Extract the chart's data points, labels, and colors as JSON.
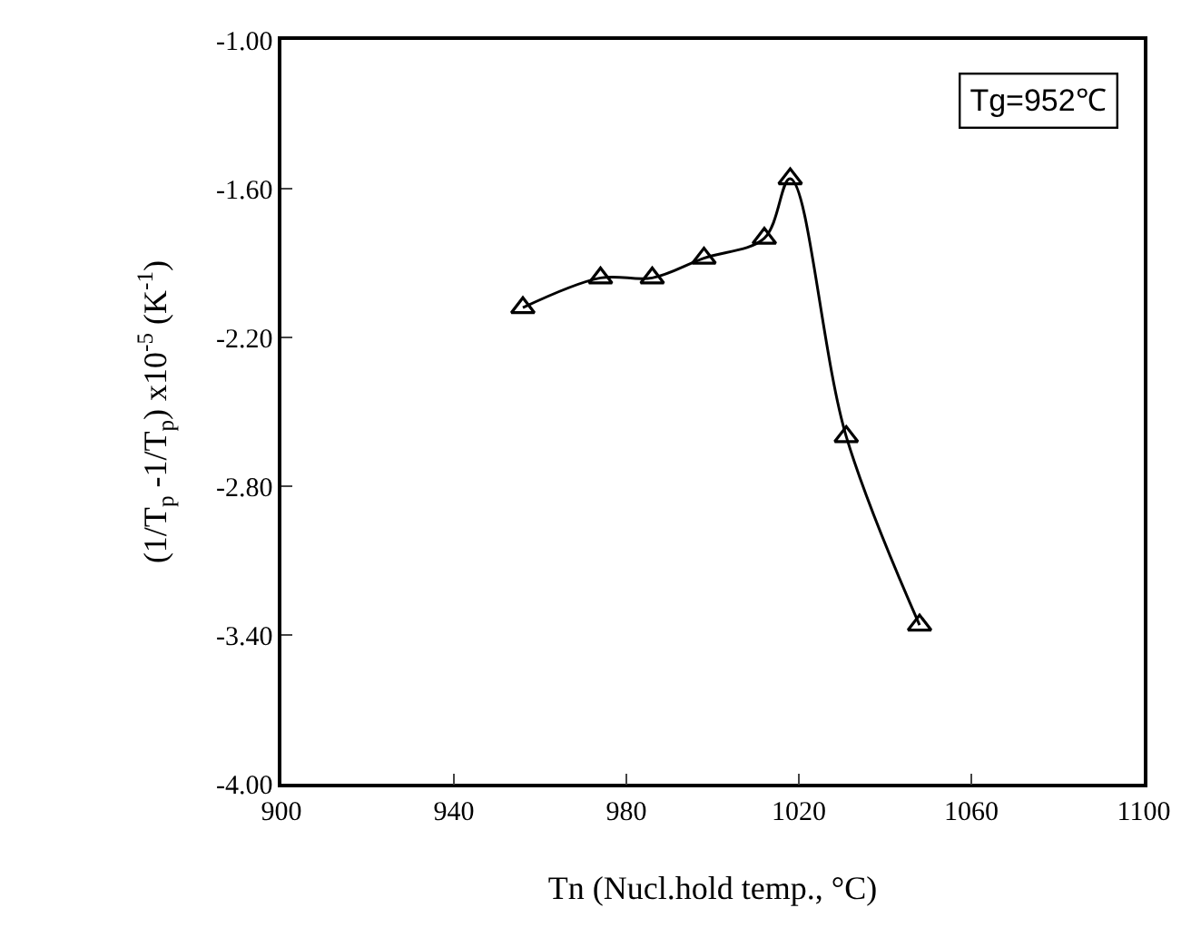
{
  "chart_data": {
    "type": "line",
    "xlabel": "Tn (Nucl.hold temp., °C)",
    "ylabel": "(1/T$_{p}$ -1/T$_{p}$) x10$^{-5}$ (K$^{-1}$)",
    "x": [
      956,
      974,
      986,
      998,
      1012,
      1018,
      1031,
      1048
    ],
    "series": [
      {
        "color": "#000000",
        "values": [
          -2.08,
          -1.96,
          -1.96,
          -1.88,
          -1.8,
          -1.56,
          -2.6,
          -3.36
        ]
      }
    ],
    "xlim": [
      900,
      1100
    ],
    "xticks": [
      900,
      940,
      980,
      1020,
      1060,
      1100
    ],
    "ylim": [
      -4.0,
      -1.0
    ],
    "yticks": [
      {
        "value": -4.0,
        "label": "-4.00"
      },
      {
        "value": -3.4,
        "label": "-3.40"
      },
      {
        "value": -2.8,
        "label": "-2.80"
      },
      {
        "value": -2.2,
        "label": "-2.20"
      },
      {
        "value": -1.6,
        "label": "-1.60"
      },
      {
        "value": -1.0,
        "label": "-1.00"
      }
    ],
    "annotations": [
      "Tg=952℃"
    ],
    "marker": "triangle",
    "line_style": "solid"
  }
}
